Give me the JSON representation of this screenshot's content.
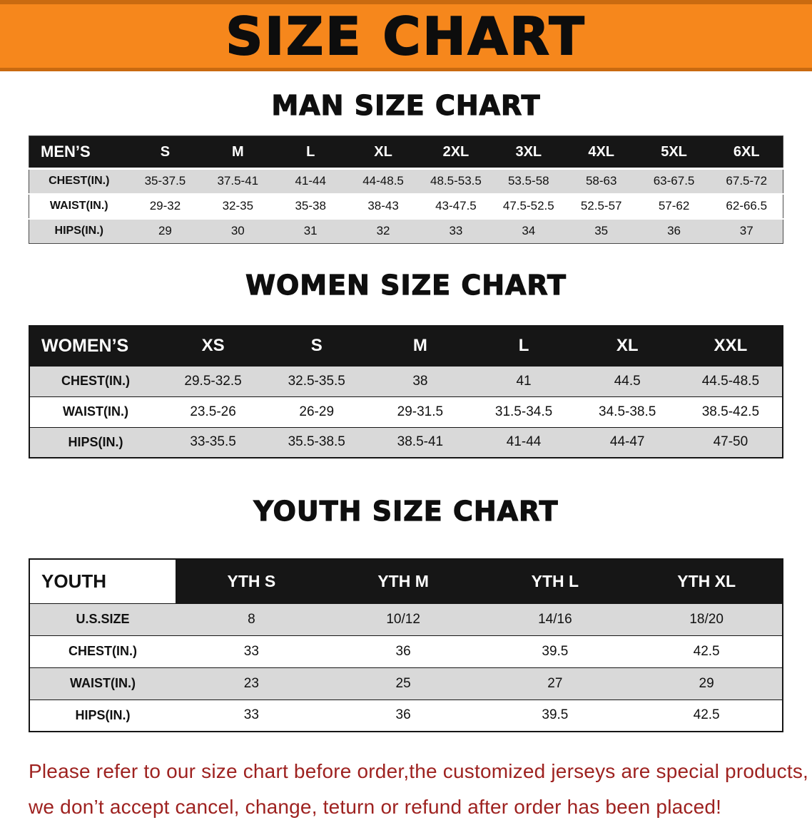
{
  "banner": {
    "title": "SIZE CHART"
  },
  "colors": {
    "banner_bg": "#f6871c",
    "table_header_bg": "#161616",
    "row_alt_gray": "#d9d9d9",
    "notice_red": "#9e2220"
  },
  "sections": [
    {
      "heading": "MAN SIZE CHART",
      "table": {
        "columns": [
          "MEN’S",
          "S",
          "M",
          "L",
          "XL",
          "2XL",
          "3XL",
          "4XL",
          "5XL",
          "6XL"
        ],
        "rows": [
          [
            "CHEST(IN.)",
            "35-37.5",
            "37.5-41",
            "41-44",
            "44-48.5",
            "48.5-53.5",
            "53.5-58",
            "58-63",
            "63-67.5",
            "67.5-72"
          ],
          [
            "WAIST(IN.)",
            "29-32",
            "32-35",
            "35-38",
            "38-43",
            "43-47.5",
            "47.5-52.5",
            "52.5-57",
            "57-62",
            "62-66.5"
          ],
          [
            "HIPS(IN.)",
            "29",
            "30",
            "31",
            "32",
            "33",
            "34",
            "35",
            "36",
            "37"
          ]
        ]
      }
    },
    {
      "heading": "WOMEN SIZE CHART",
      "table": {
        "columns": [
          "WOMEN’S",
          "XS",
          "S",
          "M",
          "L",
          "XL",
          "XXL"
        ],
        "rows": [
          [
            "CHEST(IN.)",
            "29.5-32.5",
            "32.5-35.5",
            "38",
            "41",
            "44.5",
            "44.5-48.5"
          ],
          [
            "WAIST(IN.)",
            "23.5-26",
            "26-29",
            "29-31.5",
            "31.5-34.5",
            "34.5-38.5",
            "38.5-42.5"
          ],
          [
            "HIPS(IN.)",
            "33-35.5",
            "35.5-38.5",
            "38.5-41",
            "41-44",
            "44-47",
            "47-50"
          ]
        ]
      }
    },
    {
      "heading": "YOUTH SIZE CHART",
      "table": {
        "columns": [
          "YOUTH",
          "YTH S",
          "YTH M",
          "YTH L",
          "YTH XL"
        ],
        "rows": [
          [
            "U.S.SIZE",
            "8",
            "10/12",
            "14/16",
            "18/20"
          ],
          [
            "CHEST(IN.)",
            "33",
            "36",
            "39.5",
            "42.5"
          ],
          [
            "WAIST(IN.)",
            "23",
            "25",
            "27",
            "29"
          ],
          [
            "HIPS(IN.)",
            "33",
            "36",
            "39.5",
            "42.5"
          ]
        ]
      }
    }
  ],
  "footer": {
    "lines": [
      "Please refer to our size chart before order,the customized jerseys are special products,",
      "we don’t accept cancel, change, teturn or refund after order has been placed!"
    ]
  }
}
